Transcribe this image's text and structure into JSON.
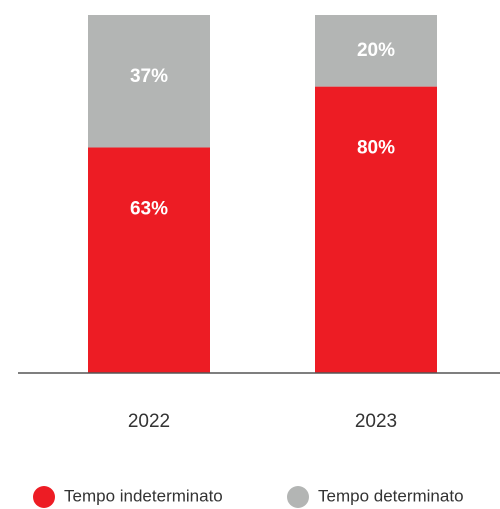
{
  "chart_data": {
    "type": "stacked_bar",
    "categories": [
      "2022",
      "2023"
    ],
    "series": [
      {
        "name": "Tempo indeterminato",
        "color": "#ed1c24",
        "values": [
          63,
          80
        ],
        "value_labels": [
          "63%",
          "80%"
        ]
      },
      {
        "name": "Tempo determinato",
        "color": "#b3b5b4",
        "values": [
          37,
          20
        ],
        "value_labels": [
          "37%",
          "20%"
        ]
      }
    ],
    "ylim": [
      0,
      100
    ]
  }
}
